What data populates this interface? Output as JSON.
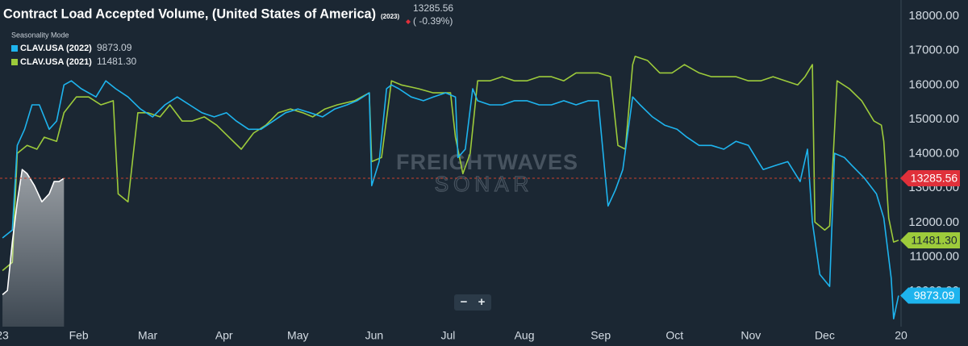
{
  "header": {
    "seasonality": "Seasonality Mode"
  },
  "watermark": {
    "brand": "FREIGHTWAVES",
    "product": "SONAR"
  },
  "controls": {
    "zoom_out": "−",
    "zoom_in": "+"
  },
  "chart_data": {
    "type": "line",
    "title": "Contract Load Accepted Volume, (United States of America)",
    "xlim": [
      -1,
      365
    ],
    "xticks": [
      {
        "value": 0,
        "label": "23"
      },
      {
        "value": 31,
        "label": "Feb"
      },
      {
        "value": 59,
        "label": "Mar"
      },
      {
        "value": 90,
        "label": "Apr"
      },
      {
        "value": 120,
        "label": "May"
      },
      {
        "value": 151,
        "label": "Jun"
      },
      {
        "value": 181,
        "label": "Jul"
      },
      {
        "value": 212,
        "label": "Aug"
      },
      {
        "value": 243,
        "label": "Sep"
      },
      {
        "value": 273,
        "label": "Oct"
      },
      {
        "value": 304,
        "label": "Nov"
      },
      {
        "value": 334,
        "label": "Dec"
      },
      {
        "value": 365,
        "label": "20"
      }
    ],
    "ylim": [
      8970,
      18470
    ],
    "yticks": [
      {
        "value": 10000,
        "label": "10000.00"
      },
      {
        "value": 11000,
        "label": "11000.00"
      },
      {
        "value": 12000,
        "label": "12000.00"
      },
      {
        "value": 13000,
        "label": "13000.00"
      },
      {
        "value": 14000,
        "label": "14000.00"
      },
      {
        "value": 15000,
        "label": "15000.00"
      },
      {
        "value": 16000,
        "label": "16000.00"
      },
      {
        "value": 17000,
        "label": "17000.00"
      },
      {
        "value": 18000,
        "label": "18000.00"
      }
    ],
    "grid": true,
    "series": [
      {
        "name": "CLAV.USA (2021)",
        "color": "#9dcb3b",
        "last_label": "11481.30",
        "x": [
          0,
          4,
          6,
          10,
          14,
          17,
          22,
          25,
          30,
          35,
          40,
          45,
          47,
          51,
          55,
          59,
          64,
          68,
          73,
          77,
          82,
          87,
          92,
          97,
          102,
          107,
          112,
          117,
          122,
          126,
          131,
          136,
          143,
          149,
          150,
          154,
          158,
          162,
          169,
          175,
          182,
          184,
          187,
          190,
          193,
          198,
          203,
          208,
          213,
          218,
          223,
          228,
          233,
          238,
          242,
          247,
          250,
          253,
          256,
          257,
          262,
          267,
          272,
          277,
          283,
          288,
          293,
          298,
          303,
          308,
          313,
          318,
          323,
          326,
          329,
          330,
          334,
          336,
          339,
          344,
          349,
          354,
          357,
          358,
          360,
          362,
          364
        ],
        "values": [
          10600,
          10840,
          14010,
          14240,
          14130,
          14480,
          14360,
          15190,
          15650,
          15650,
          15420,
          15540,
          12830,
          12600,
          15190,
          15190,
          15070,
          15420,
          14950,
          14950,
          15070,
          14830,
          14480,
          14130,
          14600,
          14830,
          15190,
          15300,
          15190,
          15070,
          15300,
          15420,
          15540,
          15770,
          13770,
          13890,
          16120,
          16000,
          15890,
          15770,
          15770,
          14480,
          13420,
          14010,
          16120,
          16120,
          16240,
          16120,
          16120,
          16240,
          16240,
          16120,
          16350,
          16350,
          16350,
          16240,
          14240,
          14130,
          16590,
          16830,
          16710,
          16350,
          16350,
          16590,
          16350,
          16240,
          16240,
          16240,
          16120,
          16120,
          16240,
          16120,
          16000,
          16240,
          16590,
          12010,
          11780,
          11900,
          16120,
          15890,
          15540,
          14950,
          14830,
          14360,
          12130,
          11430,
          11481.3
        ]
      },
      {
        "name": "CLAV.USA (2022)",
        "color": "#1eb4ee",
        "x": [
          0,
          4,
          6,
          9,
          12,
          15,
          19,
          22,
          25,
          28,
          32,
          38,
          42,
          46,
          51,
          56,
          61,
          66,
          71,
          76,
          81,
          86,
          91,
          95,
          100,
          105,
          110,
          115,
          120,
          125,
          130,
          135,
          140,
          144,
          149,
          150,
          153,
          156,
          158,
          161,
          166,
          171,
          175,
          180,
          184,
          185,
          188,
          191,
          193,
          198,
          203,
          208,
          213,
          218,
          223,
          228,
          233,
          238,
          242,
          246,
          249,
          252,
          256,
          259,
          264,
          269,
          274,
          278,
          283,
          288,
          293,
          298,
          303,
          307,
          309,
          314,
          319,
          324,
          327,
          329,
          332,
          336,
          338,
          342,
          345,
          350,
          355,
          358,
          361,
          362,
          364
        ],
        "values": [
          11550,
          11780,
          14240,
          14710,
          15420,
          15420,
          14710,
          14950,
          16000,
          16120,
          15890,
          15650,
          16120,
          15890,
          15650,
          15300,
          15070,
          15420,
          15650,
          15420,
          15190,
          15070,
          15190,
          14950,
          14710,
          14710,
          14950,
          15190,
          15300,
          15190,
          15070,
          15300,
          15420,
          15540,
          15770,
          13070,
          13770,
          15890,
          16000,
          15890,
          15650,
          15540,
          15650,
          15770,
          15650,
          13890,
          14130,
          15890,
          15540,
          15420,
          15420,
          15540,
          15540,
          15420,
          15420,
          15540,
          15420,
          15540,
          15540,
          12480,
          12950,
          13540,
          15650,
          15420,
          15070,
          14830,
          14710,
          14480,
          14240,
          14240,
          14130,
          14360,
          14240,
          13770,
          13540,
          13660,
          13770,
          13190,
          14130,
          12010,
          10490,
          10140,
          14010,
          13890,
          13660,
          13300,
          12830,
          12130,
          10380,
          9200,
          9873.09
        ]
      },
      {
        "name": "(2023)",
        "color": "#ffffff",
        "area": true,
        "change_label": "( -0.39%)",
        "change_color": "#e0303a",
        "x": [
          0,
          2,
          4,
          6,
          8,
          10,
          13,
          16,
          19,
          21,
          23,
          25
        ],
        "values": [
          9900,
          10020,
          11430,
          12600,
          13540,
          13420,
          13070,
          12600,
          12830,
          13190,
          13190,
          13285.56
        ]
      }
    ]
  }
}
